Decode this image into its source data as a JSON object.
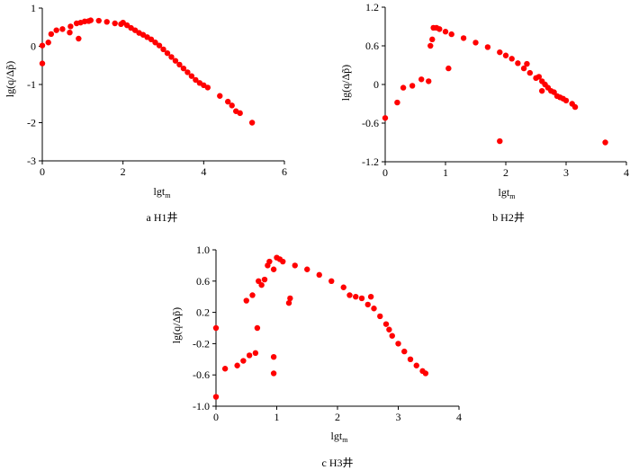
{
  "chart_data": [
    {
      "type": "scatter",
      "caption": "a  H1井",
      "xlabel_main": "lgt",
      "xlabel_sub": "m",
      "ylabel": "lg(q/Δp̃)",
      "xlim": [
        0,
        6
      ],
      "ylim": [
        -3,
        1
      ],
      "xticks": [
        "0",
        "2",
        "4",
        "6"
      ],
      "yticks": [
        "1",
        "0",
        "-1",
        "-2",
        "-3"
      ],
      "series": [
        {
          "color": "#ff0000",
          "points": [
            [
              0.0,
              -0.45
            ],
            [
              0.0,
              0.02
            ],
            [
              0.15,
              0.1
            ],
            [
              0.22,
              0.32
            ],
            [
              0.35,
              0.42
            ],
            [
              0.5,
              0.45
            ],
            [
              0.68,
              0.36
            ],
            [
              0.7,
              0.52
            ],
            [
              0.85,
              0.6
            ],
            [
              0.9,
              0.2
            ],
            [
              0.95,
              0.62
            ],
            [
              1.05,
              0.65
            ],
            [
              1.15,
              0.66
            ],
            [
              1.2,
              0.68
            ],
            [
              1.4,
              0.67
            ],
            [
              1.6,
              0.64
            ],
            [
              1.8,
              0.6
            ],
            [
              1.95,
              0.58
            ],
            [
              2.0,
              0.62
            ],
            [
              2.1,
              0.55
            ],
            [
              2.2,
              0.48
            ],
            [
              2.3,
              0.42
            ],
            [
              2.4,
              0.35
            ],
            [
              2.5,
              0.3
            ],
            [
              2.6,
              0.24
            ],
            [
              2.7,
              0.18
            ],
            [
              2.8,
              0.1
            ],
            [
              2.9,
              0.02
            ],
            [
              3.0,
              -0.08
            ],
            [
              3.1,
              -0.18
            ],
            [
              3.2,
              -0.28
            ],
            [
              3.3,
              -0.38
            ],
            [
              3.4,
              -0.48
            ],
            [
              3.5,
              -0.58
            ],
            [
              3.6,
              -0.68
            ],
            [
              3.7,
              -0.78
            ],
            [
              3.8,
              -0.88
            ],
            [
              3.9,
              -0.96
            ],
            [
              4.0,
              -1.02
            ],
            [
              4.1,
              -1.08
            ],
            [
              4.4,
              -1.3
            ],
            [
              4.6,
              -1.45
            ],
            [
              4.7,
              -1.55
            ],
            [
              4.8,
              -1.7
            ],
            [
              4.9,
              -1.75
            ],
            [
              5.2,
              -2.0
            ]
          ]
        }
      ]
    },
    {
      "type": "scatter",
      "caption": "b  H2井",
      "xlabel_main": "lgt",
      "xlabel_sub": "m",
      "ylabel": "lg(q/Δp̃)",
      "xlim": [
        0,
        4
      ],
      "ylim": [
        -1.2,
        1.2
      ],
      "xticks": [
        "0",
        "1",
        "2",
        "3",
        "4"
      ],
      "yticks": [
        "1.2",
        "0.6",
        "0",
        "-0.6",
        "-1.2"
      ],
      "series": [
        {
          "color": "#ff0000",
          "points": [
            [
              0.0,
              -0.52
            ],
            [
              0.2,
              -0.28
            ],
            [
              0.3,
              -0.05
            ],
            [
              0.45,
              -0.02
            ],
            [
              0.6,
              0.08
            ],
            [
              0.72,
              0.05
            ],
            [
              0.75,
              0.6
            ],
            [
              0.78,
              0.7
            ],
            [
              0.8,
              0.88
            ],
            [
              0.85,
              0.88
            ],
            [
              0.9,
              0.86
            ],
            [
              1.0,
              0.82
            ],
            [
              1.05,
              0.25
            ],
            [
              1.1,
              0.78
            ],
            [
              1.3,
              0.72
            ],
            [
              1.5,
              0.65
            ],
            [
              1.7,
              0.58
            ],
            [
              1.9,
              0.5
            ],
            [
              1.9,
              -0.88
            ],
            [
              2.0,
              0.45
            ],
            [
              2.1,
              0.4
            ],
            [
              2.2,
              0.33
            ],
            [
              2.3,
              0.25
            ],
            [
              2.35,
              0.32
            ],
            [
              2.4,
              0.18
            ],
            [
              2.5,
              0.1
            ],
            [
              2.55,
              0.12
            ],
            [
              2.6,
              0.05
            ],
            [
              2.6,
              -0.1
            ],
            [
              2.65,
              0.0
            ],
            [
              2.7,
              -0.05
            ],
            [
              2.75,
              -0.1
            ],
            [
              2.8,
              -0.12
            ],
            [
              2.85,
              -0.18
            ],
            [
              2.9,
              -0.2
            ],
            [
              2.95,
              -0.22
            ],
            [
              3.0,
              -0.25
            ],
            [
              3.1,
              -0.3
            ],
            [
              3.15,
              -0.35
            ],
            [
              3.65,
              -0.9
            ]
          ]
        }
      ]
    },
    {
      "type": "scatter",
      "caption": "c  H3井",
      "xlabel_main": "lgt",
      "xlabel_sub": "m",
      "ylabel": "lg(q/Δp̃)",
      "xlim": [
        0,
        4
      ],
      "ylim": [
        -1.0,
        1.0
      ],
      "xticks": [
        "0",
        "1",
        "2",
        "3",
        "4"
      ],
      "yticks": [
        "1.0",
        "0.6",
        "0.2",
        "-0.2",
        "-0.6",
        "-1.0"
      ],
      "series": [
        {
          "color": "#ff0000",
          "points": [
            [
              0.0,
              0.0
            ],
            [
              0.0,
              -0.88
            ],
            [
              0.15,
              -0.52
            ],
            [
              0.35,
              -0.48
            ],
            [
              0.45,
              -0.42
            ],
            [
              0.5,
              0.35
            ],
            [
              0.55,
              -0.35
            ],
            [
              0.6,
              0.42
            ],
            [
              0.65,
              -0.32
            ],
            [
              0.68,
              0.0
            ],
            [
              0.7,
              0.6
            ],
            [
              0.75,
              0.55
            ],
            [
              0.8,
              0.62
            ],
            [
              0.85,
              0.8
            ],
            [
              0.88,
              0.85
            ],
            [
              0.95,
              0.75
            ],
            [
              0.95,
              -0.37
            ],
            [
              0.95,
              -0.58
            ],
            [
              1.0,
              0.9
            ],
            [
              1.05,
              0.88
            ],
            [
              1.1,
              0.85
            ],
            [
              1.2,
              0.32
            ],
            [
              1.22,
              0.38
            ],
            [
              1.3,
              0.8
            ],
            [
              1.5,
              0.75
            ],
            [
              1.7,
              0.68
            ],
            [
              1.9,
              0.6
            ],
            [
              2.1,
              0.52
            ],
            [
              2.2,
              0.42
            ],
            [
              2.3,
              0.4
            ],
            [
              2.4,
              0.38
            ],
            [
              2.5,
              0.3
            ],
            [
              2.55,
              0.4
            ],
            [
              2.6,
              0.25
            ],
            [
              2.7,
              0.15
            ],
            [
              2.8,
              0.05
            ],
            [
              2.85,
              -0.02
            ],
            [
              2.9,
              -0.1
            ],
            [
              3.0,
              -0.2
            ],
            [
              3.1,
              -0.3
            ],
            [
              3.2,
              -0.4
            ],
            [
              3.3,
              -0.48
            ],
            [
              3.4,
              -0.55
            ],
            [
              3.45,
              -0.58
            ]
          ]
        }
      ]
    }
  ]
}
